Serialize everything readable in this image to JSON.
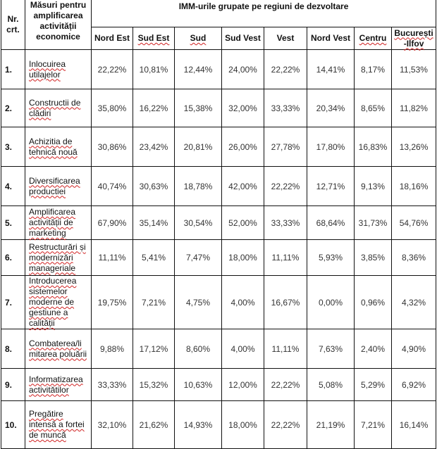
{
  "header": {
    "nr_label": "Nr. crt.",
    "measure_label": "Măsuri pentru amplificarea activității economice",
    "group_label": "IMM-urile grupate pe regiuni de dezvoltare",
    "regions": [
      "Nord Est",
      "Sud Est",
      "Sud",
      "Sud Vest",
      "Vest",
      "Nord Vest",
      "Centru",
      "București -Ilfov"
    ]
  },
  "rows": [
    {
      "nr": "1.",
      "measure": "Inlocuirea utilajelor",
      "values": [
        "22,22%",
        "10,81%",
        "12,44%",
        "24,00%",
        "22,22%",
        "14,41%",
        "8,17%",
        "11,53%"
      ]
    },
    {
      "nr": "2.",
      "measure": "Constructii de clădiri",
      "values": [
        "35,80%",
        "16,22%",
        "15,38%",
        "32,00%",
        "33,33%",
        "20,34%",
        "8,65%",
        "11,82%"
      ]
    },
    {
      "nr": "3.",
      "measure": "Achizitia de tehnică nouă",
      "values": [
        "30,86%",
        "23,42%",
        "20,81%",
        "26,00%",
        "27,78%",
        "17,80%",
        "16,83%",
        "13,26%"
      ]
    },
    {
      "nr": "4.",
      "measure": "Diversificarea productiei",
      "values": [
        "40,74%",
        "30,63%",
        "18,78%",
        "42,00%",
        "22,22%",
        "12,71%",
        "9,13%",
        "18,16%"
      ]
    },
    {
      "nr": "5.",
      "measure": "Amplificarea activității de marketing",
      "values": [
        "67,90%",
        "35,14%",
        "30,54%",
        "52,00%",
        "33,33%",
        "68,64%",
        "31,73%",
        "54,76%"
      ]
    },
    {
      "nr": "6.",
      "measure": "Restructurări și modernizări manageriale",
      "values": [
        "11,11%",
        "5,41%",
        "7,47%",
        "18,00%",
        "11,11%",
        "5,93%",
        "3,85%",
        "8,36%"
      ]
    },
    {
      "nr": "7.",
      "measure": "Introducerea sistemelor moderne de gestiune a calității",
      "values": [
        "19,75%",
        "7,21%",
        "4,75%",
        "4,00%",
        "16,67%",
        "0,00%",
        "0,96%",
        "4,32%"
      ]
    },
    {
      "nr": "8.",
      "measure": "Combaterea/li mitarea poluării",
      "values": [
        "9,88%",
        "17,12%",
        "8,60%",
        "4,00%",
        "11,11%",
        "7,63%",
        "2,40%",
        "4,90%"
      ]
    },
    {
      "nr": "9.",
      "measure": "Informatizarea activitătilor",
      "values": [
        "33,33%",
        "15,32%",
        "10,63%",
        "12,00%",
        "22,22%",
        "5,08%",
        "5,29%",
        "6,92%"
      ]
    },
    {
      "nr": "10.",
      "measure": "Pregătire intensă a fortei de muncă",
      "values": [
        "32,10%",
        "21,62%",
        "14,93%",
        "18,00%",
        "22,22%",
        "21,19%",
        "7,21%",
        "16,14%"
      ]
    }
  ]
}
